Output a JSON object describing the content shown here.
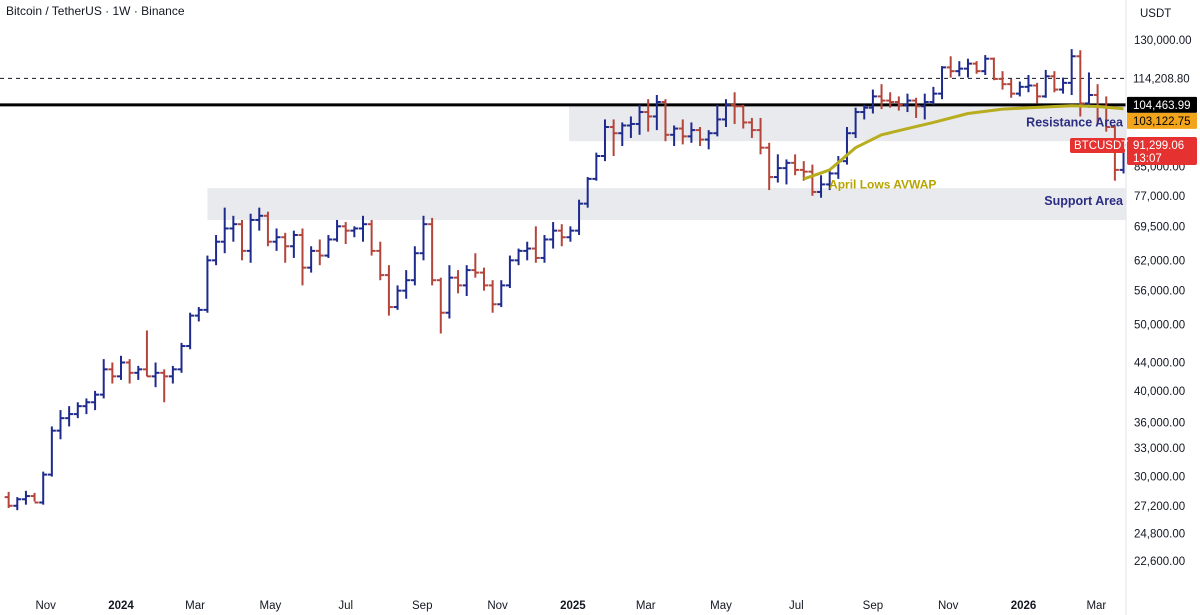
{
  "header": {
    "title": "Bitcoin / TetherUS · 1W · Binance"
  },
  "axis_unit": "USDT",
  "colors": {
    "up": "#1e2a8c",
    "down": "#b3453a",
    "avwap": "#b8ad1e",
    "zone": "#e8eaee",
    "resistance_line": "#000000"
  },
  "price_tags": {
    "dashed": "114,208.80",
    "resistance": "104,463.99",
    "avwap": "103,122.75",
    "current": "91,299.06",
    "countdown": "13:07",
    "symbol": "BTCUSDT"
  },
  "annotations": {
    "resistance": "Resistance Area",
    "support": "Support Area",
    "avwap": "April Lows AVWAP"
  },
  "chart_data": {
    "type": "ohlc",
    "title": "Bitcoin / TetherUS · 1W · Binance",
    "y_scale": "log",
    "ylim": [
      20500,
      138000
    ],
    "y_ticks": [
      "130,000.00",
      "114,208.80",
      "104,463.99",
      "103,122.75",
      "91,299.06",
      "85,000.00",
      "77,000.00",
      "69,500.00",
      "62,000.00",
      "56,000.00",
      "50,000.00",
      "44,000.00",
      "40,000.00",
      "36,000.00",
      "33,000.00",
      "30,000.00",
      "27,200.00",
      "24,800.00",
      "22,600.00"
    ],
    "y_tick_values": [
      130000,
      85000,
      77000,
      69500,
      62000,
      56000,
      50000,
      44000,
      40000,
      36000,
      33000,
      30000,
      27200,
      24800,
      22600
    ],
    "x_ticks": [
      "Nov",
      "2024",
      "Mar",
      "May",
      "Jul",
      "Sep",
      "Nov",
      "2025",
      "Mar",
      "May",
      "Jul",
      "Sep",
      "Nov",
      "2026",
      "Mar"
    ],
    "x_tick_dates": [
      "2023-11-01",
      "2024-01-01",
      "2024-03-01",
      "2024-05-01",
      "2024-07-01",
      "2024-09-01",
      "2024-11-01",
      "2025-01-01",
      "2025-03-01",
      "2025-05-01",
      "2025-07-01",
      "2025-09-01",
      "2025-11-01",
      "2026-01-01",
      "2026-03-01"
    ],
    "x_range": [
      "2023-09-25",
      "2026-03-25"
    ],
    "resistance_area": [
      92500,
      104000
    ],
    "support_area": [
      71000,
      79000
    ],
    "resistance_level": 104463.99,
    "dashed_level": 114208.8,
    "current_price": 91299.06,
    "ohlc": [
      {
        "date": "2023-10-02",
        "o": 28000,
        "h": 28500,
        "l": 27000,
        "c": 27200
      },
      {
        "date": "2023-10-09",
        "o": 27200,
        "h": 28000,
        "l": 26800,
        "c": 27800
      },
      {
        "date": "2023-10-16",
        "o": 27800,
        "h": 28600,
        "l": 27300,
        "c": 28100
      },
      {
        "date": "2023-10-23",
        "o": 28100,
        "h": 28400,
        "l": 27600,
        "c": 27500
      },
      {
        "date": "2023-10-30",
        "o": 27500,
        "h": 30500,
        "l": 27300,
        "c": 30200
      },
      {
        "date": "2023-11-06",
        "o": 30200,
        "h": 35500,
        "l": 30000,
        "c": 35000
      },
      {
        "date": "2023-11-13",
        "o": 35000,
        "h": 37500,
        "l": 34000,
        "c": 36500
      },
      {
        "date": "2023-11-20",
        "o": 36500,
        "h": 38000,
        "l": 35500,
        "c": 37000
      },
      {
        "date": "2023-11-27",
        "o": 37000,
        "h": 38500,
        "l": 36500,
        "c": 38000
      },
      {
        "date": "2023-12-04",
        "o": 38000,
        "h": 39000,
        "l": 37000,
        "c": 38500
      },
      {
        "date": "2023-12-11",
        "o": 38500,
        "h": 40000,
        "l": 37500,
        "c": 39500
      },
      {
        "date": "2023-12-18",
        "o": 39500,
        "h": 44500,
        "l": 39000,
        "c": 43000
      },
      {
        "date": "2023-12-25",
        "o": 43000,
        "h": 44000,
        "l": 41000,
        "c": 42000
      },
      {
        "date": "2024-01-01",
        "o": 42000,
        "h": 45000,
        "l": 41500,
        "c": 44000
      },
      {
        "date": "2024-01-08",
        "o": 44000,
        "h": 44500,
        "l": 41000,
        "c": 42500
      },
      {
        "date": "2024-01-15",
        "o": 42500,
        "h": 43500,
        "l": 41500,
        "c": 43000
      },
      {
        "date": "2024-01-22",
        "o": 43000,
        "h": 49000,
        "l": 42000,
        "c": 42000
      },
      {
        "date": "2024-01-29",
        "o": 42000,
        "h": 44000,
        "l": 40500,
        "c": 42500
      },
      {
        "date": "2024-02-05",
        "o": 42500,
        "h": 43000,
        "l": 38500,
        "c": 42000
      },
      {
        "date": "2024-02-12",
        "o": 42000,
        "h": 43500,
        "l": 41000,
        "c": 43000
      },
      {
        "date": "2024-02-19",
        "o": 43000,
        "h": 47000,
        "l": 42500,
        "c": 46500
      },
      {
        "date": "2024-02-26",
        "o": 46500,
        "h": 52000,
        "l": 46000,
        "c": 51500
      },
      {
        "date": "2024-03-04",
        "o": 51500,
        "h": 53000,
        "l": 50500,
        "c": 52500
      },
      {
        "date": "2024-03-11",
        "o": 52500,
        "h": 63000,
        "l": 52000,
        "c": 62000
      },
      {
        "date": "2024-03-18",
        "o": 62000,
        "h": 67500,
        "l": 61000,
        "c": 66000
      },
      {
        "date": "2024-03-25",
        "o": 66000,
        "h": 74000,
        "l": 63500,
        "c": 69000
      },
      {
        "date": "2024-04-01",
        "o": 69000,
        "h": 72000,
        "l": 66000,
        "c": 70000
      },
      {
        "date": "2024-04-08",
        "o": 70000,
        "h": 71000,
        "l": 62000,
        "c": 64000
      },
      {
        "date": "2024-04-15",
        "o": 64000,
        "h": 72500,
        "l": 61500,
        "c": 71000
      },
      {
        "date": "2024-04-22",
        "o": 71000,
        "h": 74000,
        "l": 68500,
        "c": 72000
      },
      {
        "date": "2024-04-29",
        "o": 72000,
        "h": 73000,
        "l": 65000,
        "c": 66000
      },
      {
        "date": "2024-05-06",
        "o": 66000,
        "h": 69000,
        "l": 64000,
        "c": 67000
      },
      {
        "date": "2024-05-13",
        "o": 67000,
        "h": 68000,
        "l": 61500,
        "c": 65000
      },
      {
        "date": "2024-05-20",
        "o": 65000,
        "h": 68500,
        "l": 62500,
        "c": 67500
      },
      {
        "date": "2024-05-27",
        "o": 67500,
        "h": 69000,
        "l": 57000,
        "c": 60500
      },
      {
        "date": "2024-06-03",
        "o": 60500,
        "h": 65000,
        "l": 59500,
        "c": 64000
      },
      {
        "date": "2024-06-10",
        "o": 64000,
        "h": 66500,
        "l": 61000,
        "c": 63000
      },
      {
        "date": "2024-06-17",
        "o": 63000,
        "h": 67500,
        "l": 62500,
        "c": 66500
      },
      {
        "date": "2024-06-24",
        "o": 66500,
        "h": 71000,
        "l": 66000,
        "c": 69500
      },
      {
        "date": "2024-07-01",
        "o": 69500,
        "h": 70500,
        "l": 65500,
        "c": 68500
      },
      {
        "date": "2024-07-08",
        "o": 68500,
        "h": 69500,
        "l": 67000,
        "c": 69000
      },
      {
        "date": "2024-07-15",
        "o": 69000,
        "h": 72000,
        "l": 66000,
        "c": 70000
      },
      {
        "date": "2024-07-22",
        "o": 70000,
        "h": 71000,
        "l": 63000,
        "c": 64000
      },
      {
        "date": "2024-07-29",
        "o": 64000,
        "h": 66000,
        "l": 58000,
        "c": 59000
      },
      {
        "date": "2024-08-05",
        "o": 59000,
        "h": 61000,
        "l": 51500,
        "c": 53000
      },
      {
        "date": "2024-08-12",
        "o": 53000,
        "h": 57000,
        "l": 52500,
        "c": 56000
      },
      {
        "date": "2024-08-19",
        "o": 56000,
        "h": 60000,
        "l": 54500,
        "c": 58000
      },
      {
        "date": "2024-08-26",
        "o": 58000,
        "h": 65000,
        "l": 57000,
        "c": 63500
      },
      {
        "date": "2024-09-02",
        "o": 63500,
        "h": 72000,
        "l": 62000,
        "c": 70000
      },
      {
        "date": "2024-09-09",
        "o": 70000,
        "h": 71500,
        "l": 57000,
        "c": 58000
      },
      {
        "date": "2024-09-16",
        "o": 58000,
        "h": 58500,
        "l": 48500,
        "c": 52000
      },
      {
        "date": "2024-09-23",
        "o": 52000,
        "h": 61000,
        "l": 51000,
        "c": 58500
      },
      {
        "date": "2024-09-30",
        "o": 58500,
        "h": 60000,
        "l": 55500,
        "c": 57000
      },
      {
        "date": "2024-10-07",
        "o": 57000,
        "h": 61000,
        "l": 55000,
        "c": 60000
      },
      {
        "date": "2024-10-14",
        "o": 60000,
        "h": 63500,
        "l": 58500,
        "c": 59500
      },
      {
        "date": "2024-10-21",
        "o": 59500,
        "h": 60500,
        "l": 56000,
        "c": 57000
      },
      {
        "date": "2024-10-28",
        "o": 57000,
        "h": 58000,
        "l": 52000,
        "c": 53500
      },
      {
        "date": "2024-11-04",
        "o": 53500,
        "h": 58000,
        "l": 53000,
        "c": 57000
      },
      {
        "date": "2024-11-11",
        "o": 57000,
        "h": 63000,
        "l": 56500,
        "c": 62000
      },
      {
        "date": "2024-11-18",
        "o": 62000,
        "h": 64500,
        "l": 61000,
        "c": 64000
      },
      {
        "date": "2024-11-25",
        "o": 64000,
        "h": 66000,
        "l": 62000,
        "c": 64500
      },
      {
        "date": "2024-12-02",
        "o": 64500,
        "h": 69500,
        "l": 61500,
        "c": 62500
      },
      {
        "date": "2024-12-09",
        "o": 62500,
        "h": 67500,
        "l": 61500,
        "c": 66500
      },
      {
        "date": "2024-12-16",
        "o": 66500,
        "h": 70500,
        "l": 64500,
        "c": 68500
      },
      {
        "date": "2024-12-23",
        "o": 68500,
        "h": 70000,
        "l": 65000,
        "c": 67000
      },
      {
        "date": "2024-12-30",
        "o": 67000,
        "h": 69500,
        "l": 66000,
        "c": 68500
      },
      {
        "date": "2025-01-06",
        "o": 68500,
        "h": 76000,
        "l": 67500,
        "c": 75000
      },
      {
        "date": "2025-01-13",
        "o": 75000,
        "h": 82000,
        "l": 74000,
        "c": 81500
      },
      {
        "date": "2025-01-20",
        "o": 81500,
        "h": 89000,
        "l": 81000,
        "c": 88000
      },
      {
        "date": "2025-01-27",
        "o": 88000,
        "h": 99500,
        "l": 86500,
        "c": 97000
      },
      {
        "date": "2025-02-03",
        "o": 97000,
        "h": 99500,
        "l": 88000,
        "c": 95000
      },
      {
        "date": "2025-02-10",
        "o": 95000,
        "h": 98500,
        "l": 91000,
        "c": 97500
      },
      {
        "date": "2025-02-17",
        "o": 97500,
        "h": 100500,
        "l": 93500,
        "c": 98000
      },
      {
        "date": "2025-02-24",
        "o": 98000,
        "h": 104500,
        "l": 94500,
        "c": 102000
      },
      {
        "date": "2025-03-03",
        "o": 102000,
        "h": 106500,
        "l": 95500,
        "c": 100500
      },
      {
        "date": "2025-03-10",
        "o": 100500,
        "h": 108000,
        "l": 96000,
        "c": 105500
      },
      {
        "date": "2025-03-17",
        "o": 105500,
        "h": 106500,
        "l": 92500,
        "c": 94500
      },
      {
        "date": "2025-03-24",
        "o": 94500,
        "h": 97500,
        "l": 91000,
        "c": 96500
      },
      {
        "date": "2025-03-31",
        "o": 96500,
        "h": 99500,
        "l": 91500,
        "c": 94000
      },
      {
        "date": "2025-04-07",
        "o": 94000,
        "h": 98500,
        "l": 92000,
        "c": 96000
      },
      {
        "date": "2025-04-14",
        "o": 96000,
        "h": 97000,
        "l": 91000,
        "c": 93000
      },
      {
        "date": "2025-04-21",
        "o": 93000,
        "h": 96000,
        "l": 90000,
        "c": 95000
      },
      {
        "date": "2025-04-28",
        "o": 95000,
        "h": 104500,
        "l": 94000,
        "c": 99500
      },
      {
        "date": "2025-05-05",
        "o": 99500,
        "h": 106500,
        "l": 97000,
        "c": 104500
      },
      {
        "date": "2025-05-12",
        "o": 104500,
        "h": 109000,
        "l": 98000,
        "c": 104000
      },
      {
        "date": "2025-05-19",
        "o": 104000,
        "h": 104500,
        "l": 96500,
        "c": 98500
      },
      {
        "date": "2025-05-26",
        "o": 98500,
        "h": 100000,
        "l": 93500,
        "c": 96000
      },
      {
        "date": "2025-06-02",
        "o": 96000,
        "h": 100000,
        "l": 88500,
        "c": 90500
      },
      {
        "date": "2025-06-09",
        "o": 90500,
        "h": 92000,
        "l": 78500,
        "c": 82000
      },
      {
        "date": "2025-06-16",
        "o": 82000,
        "h": 88500,
        "l": 80500,
        "c": 84500
      },
      {
        "date": "2025-06-23",
        "o": 84500,
        "h": 87000,
        "l": 80000,
        "c": 86000
      },
      {
        "date": "2025-06-30",
        "o": 86000,
        "h": 88500,
        "l": 82500,
        "c": 84000
      },
      {
        "date": "2025-07-07",
        "o": 84000,
        "h": 86500,
        "l": 81000,
        "c": 83500
      },
      {
        "date": "2025-07-14",
        "o": 83500,
        "h": 85500,
        "l": 77000,
        "c": 78000
      },
      {
        "date": "2025-07-21",
        "o": 78000,
        "h": 82500,
        "l": 76500,
        "c": 80000
      },
      {
        "date": "2025-07-28",
        "o": 80000,
        "h": 84000,
        "l": 78500,
        "c": 83000
      },
      {
        "date": "2025-08-04",
        "o": 83000,
        "h": 88000,
        "l": 81500,
        "c": 86500
      },
      {
        "date": "2025-08-11",
        "o": 86500,
        "h": 97000,
        "l": 85500,
        "c": 95000
      },
      {
        "date": "2025-08-18",
        "o": 95000,
        "h": 103500,
        "l": 93500,
        "c": 102000
      },
      {
        "date": "2025-08-25",
        "o": 102000,
        "h": 104500,
        "l": 99500,
        "c": 103500
      },
      {
        "date": "2025-09-01",
        "o": 103500,
        "h": 110000,
        "l": 101500,
        "c": 107500
      },
      {
        "date": "2025-09-08",
        "o": 107500,
        "h": 112000,
        "l": 103000,
        "c": 106000
      },
      {
        "date": "2025-09-15",
        "o": 106000,
        "h": 109000,
        "l": 103500,
        "c": 105500
      },
      {
        "date": "2025-09-22",
        "o": 105500,
        "h": 107500,
        "l": 102500,
        "c": 104500
      },
      {
        "date": "2025-09-29",
        "o": 104500,
        "h": 108500,
        "l": 102000,
        "c": 106000
      },
      {
        "date": "2025-10-06",
        "o": 106000,
        "h": 107000,
        "l": 100000,
        "c": 104000
      },
      {
        "date": "2025-10-13",
        "o": 104000,
        "h": 108500,
        "l": 99500,
        "c": 105500
      },
      {
        "date": "2025-10-20",
        "o": 105500,
        "h": 111000,
        "l": 104500,
        "c": 108500
      },
      {
        "date": "2025-10-27",
        "o": 108500,
        "h": 119000,
        "l": 106500,
        "c": 118500
      },
      {
        "date": "2025-11-03",
        "o": 118500,
        "h": 123000,
        "l": 114500,
        "c": 117000
      },
      {
        "date": "2025-11-10",
        "o": 117000,
        "h": 121000,
        "l": 115000,
        "c": 118000
      },
      {
        "date": "2025-11-17",
        "o": 118000,
        "h": 122000,
        "l": 114500,
        "c": 120000
      },
      {
        "date": "2025-11-24",
        "o": 120000,
        "h": 121000,
        "l": 116000,
        "c": 117000
      },
      {
        "date": "2025-12-01",
        "o": 117000,
        "h": 123500,
        "l": 115500,
        "c": 122000
      },
      {
        "date": "2025-12-08",
        "o": 122000,
        "h": 122500,
        "l": 113500,
        "c": 114000
      },
      {
        "date": "2025-12-15",
        "o": 114000,
        "h": 117000,
        "l": 110000,
        "c": 112000
      },
      {
        "date": "2025-12-22",
        "o": 112000,
        "h": 114000,
        "l": 107000,
        "c": 108500
      },
      {
        "date": "2025-12-29",
        "o": 108500,
        "h": 113000,
        "l": 107500,
        "c": 111000
      },
      {
        "date": "2026-01-05",
        "o": 111000,
        "h": 115500,
        "l": 109000,
        "c": 111500
      },
      {
        "date": "2026-01-12",
        "o": 111500,
        "h": 112500,
        "l": 105000,
        "c": 107500
      },
      {
        "date": "2026-01-19",
        "o": 107500,
        "h": 117500,
        "l": 107000,
        "c": 115000
      },
      {
        "date": "2026-01-26",
        "o": 115000,
        "h": 117000,
        "l": 109000,
        "c": 110000
      },
      {
        "date": "2026-02-02",
        "o": 110000,
        "h": 114500,
        "l": 108500,
        "c": 112500
      },
      {
        "date": "2026-02-09",
        "o": 112500,
        "h": 126000,
        "l": 108000,
        "c": 123000
      },
      {
        "date": "2026-02-16",
        "o": 123000,
        "h": 125500,
        "l": 100500,
        "c": 105000
      },
      {
        "date": "2026-02-23",
        "o": 105000,
        "h": 116500,
        "l": 103500,
        "c": 108000
      },
      {
        "date": "2026-03-02",
        "o": 108000,
        "h": 112000,
        "l": 98000,
        "c": 104000
      },
      {
        "date": "2026-03-09",
        "o": 104000,
        "h": 107500,
        "l": 95500,
        "c": 97000
      },
      {
        "date": "2026-03-16",
        "o": 97000,
        "h": 97500,
        "l": 81000,
        "c": 84000
      },
      {
        "date": "2026-03-23",
        "o": 84000,
        "h": 93000,
        "l": 83000,
        "c": 91299.06
      }
    ],
    "avwap_series": [
      {
        "date": "2025-07-07",
        "v": 81500
      },
      {
        "date": "2025-07-28",
        "v": 84000
      },
      {
        "date": "2025-08-18",
        "v": 90500
      },
      {
        "date": "2025-09-08",
        "v": 94500
      },
      {
        "date": "2025-09-29",
        "v": 96500
      },
      {
        "date": "2025-10-20",
        "v": 98500
      },
      {
        "date": "2025-11-17",
        "v": 101500
      },
      {
        "date": "2025-12-15",
        "v": 103000
      },
      {
        "date": "2026-01-12",
        "v": 103600
      },
      {
        "date": "2026-02-09",
        "v": 104200
      },
      {
        "date": "2026-03-02",
        "v": 103900
      },
      {
        "date": "2026-03-23",
        "v": 103122.75
      }
    ]
  }
}
